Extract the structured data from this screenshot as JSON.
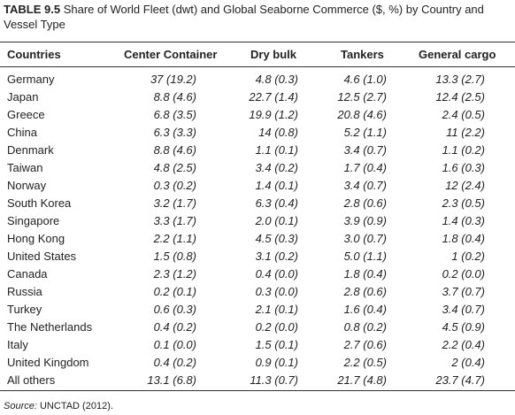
{
  "header": {
    "table_number": "TABLE 9.5",
    "title": "Share of World Fleet (dwt) and Global Seaborne Commerce ($, %) by Country and Vessel Type"
  },
  "table": {
    "columns": [
      "Countries",
      "Center Container",
      "Dry bulk",
      "Tankers",
      "General cargo"
    ],
    "rows": [
      [
        "Germany",
        "37 (19.2)",
        "4.8 (0.3)",
        "4.6 (1.0)",
        "13.3 (2.7)"
      ],
      [
        "Japan",
        "8.8 (4.6)",
        "22.7 (1.4)",
        "12.5 (2.7)",
        "12.4 (2.5)"
      ],
      [
        "Greece",
        "6.8 (3.5)",
        "19.9 (1.2)",
        "20.8 (4.6)",
        "2.4 (0.5)"
      ],
      [
        "China",
        "6.3 (3.3)",
        "14 (0.8)",
        "5.2 (1.1)",
        "11 (2.2)"
      ],
      [
        "Denmark",
        "8.8 (4.6)",
        "1.1 (0.1)",
        "3.4 (0.7)",
        "1.1 (0.2)"
      ],
      [
        "Taiwan",
        "4.8 (2.5)",
        "3.4 (0.2)",
        "1.7 (0.4)",
        "1.6 (0.3)"
      ],
      [
        "Norway",
        "0.3 (0.2)",
        "1.4 (0.1)",
        "3.4 (0.7)",
        "12 (2.4)"
      ],
      [
        "South Korea",
        "3.2 (1.7)",
        "6.3 (0.4)",
        "2.8 (0.6)",
        "2.3 (0.5)"
      ],
      [
        "Singapore",
        "3.3 (1.7)",
        "2.0 (0.1)",
        "3.9 (0.9)",
        "1.4 (0.3)"
      ],
      [
        "Hong Kong",
        "2.2 (1.1)",
        "4.5 (0.3)",
        "3.0 (0.7)",
        "1.8 (0.4)"
      ],
      [
        "United States",
        "1.5 (0.8)",
        "3.1 (0.2)",
        "5.0 (1.1)",
        "1 (0.2)"
      ],
      [
        "Canada",
        "2.3 (1.2)",
        "0.4 (0.0)",
        "1.8 (0.4)",
        "0.2 (0.0)"
      ],
      [
        "Russia",
        "0.2 (0.1)",
        "0.3 (0.0)",
        "2.8 (0.6)",
        "3.7 (0.7)"
      ],
      [
        "Turkey",
        "0.6 (0.3)",
        "2.1 (0.1)",
        "1.6 (0.4)",
        "3.4 (0.7)"
      ],
      [
        "The Netherlands",
        "0.4 (0.2)",
        "0.2 (0.0)",
        "0.8 (0.2)",
        "4.5 (0.9)"
      ],
      [
        "Italy",
        "0.1 (0.0)",
        "1.5 (0.1)",
        "2.7 (0.6)",
        "2.2 (0.4)"
      ],
      [
        "United Kingdom",
        "0.4 (0.2)",
        "0.9 (0.1)",
        "2.2 (0.5)",
        "2 (0.4)"
      ],
      [
        "All others",
        "13.1 (6.8)",
        "11.3 (0.7)",
        "21.7 (4.8)",
        "23.7 (4.7)"
      ]
    ]
  },
  "footer": {
    "source_label": "Source:",
    "source": "UNCTAD (2012)."
  }
}
